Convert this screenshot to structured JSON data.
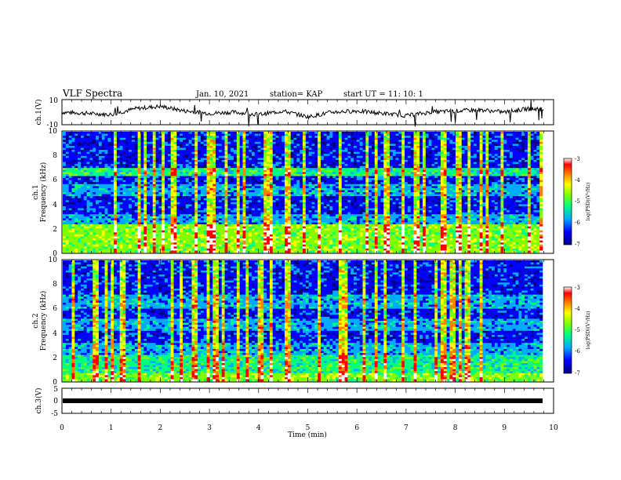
{
  "header": {
    "title": "VLF Spectra",
    "date": "Jan. 10, 2021",
    "station": "station= KAP",
    "start": "start UT =  11: 10: 1"
  },
  "axes": {
    "xlabel": "Time (min)",
    "ch1_waveform_label": "ch.1(V)",
    "ch1_spec_label_top": "ch.1",
    "ch1_spec_label": "Frequency (kHz)",
    "ch2_spec_label_top": "ch.2",
    "ch2_spec_label": "Frequency (kHz)",
    "ch3_waveform_label": "ch.3(V)",
    "colorbar_label": "log(PSD)(V²/Hz)"
  },
  "colors": {
    "scale": [
      "#000080",
      "#0000ff",
      "#00aaff",
      "#00ff80",
      "#80ff00",
      "#ffff00",
      "#ff8000",
      "#ff0000",
      "#ffffff"
    ],
    "trace": "#000000"
  },
  "chart_data": [
    {
      "type": "line",
      "name": "ch1-waveform",
      "ylabel": "ch.1(V)",
      "xlim": [
        0,
        10
      ],
      "ylim": [
        -10,
        10
      ],
      "yticks": [
        "10",
        "-10"
      ],
      "x": [
        0,
        0.5,
        1,
        1.5,
        2,
        2.5,
        3,
        3.5,
        4,
        4.5,
        5,
        5.5,
        6,
        6.5,
        7,
        7.5,
        8,
        8.5,
        9,
        9.5,
        9.8
      ],
      "y": [
        0,
        -1,
        -2,
        3,
        5,
        1,
        -1,
        0,
        -2,
        1,
        -4,
        0,
        1,
        -1,
        -3,
        0,
        1,
        2,
        0,
        3,
        2
      ]
    },
    {
      "type": "heatmap",
      "name": "ch1-spectrogram",
      "ylabel": "Frequency (kHz)",
      "xlim": [
        0,
        10
      ],
      "ylim": [
        0,
        10
      ],
      "yticks": [
        "0",
        "2",
        "4",
        "6",
        "8",
        "10"
      ],
      "colorbar": {
        "range": [
          -7,
          -3
        ],
        "ticks": [
          "-3",
          "-4",
          "-5",
          "-6",
          "-7"
        ]
      }
    },
    {
      "type": "heatmap",
      "name": "ch2-spectrogram",
      "ylabel": "Frequency (kHz)",
      "xlim": [
        0,
        10
      ],
      "ylim": [
        0,
        10
      ],
      "yticks": [
        "0",
        "2",
        "4",
        "6",
        "8",
        "10"
      ],
      "colorbar": {
        "range": [
          -7,
          -3
        ],
        "ticks": [
          "-3",
          "-4",
          "-5",
          "-6",
          "-7"
        ]
      }
    },
    {
      "type": "line",
      "name": "ch3-waveform",
      "ylabel": "ch.3(V)",
      "xlim": [
        0,
        10
      ],
      "ylim": [
        -5,
        5
      ],
      "yticks": [
        "5",
        "0",
        "-5"
      ],
      "x": [
        0,
        9.8
      ],
      "y": [
        0,
        0
      ]
    }
  ],
  "xaxis": {
    "ticks": [
      "0",
      "1",
      "2",
      "3",
      "4",
      "5",
      "6",
      "7",
      "8",
      "9",
      "10"
    ]
  }
}
